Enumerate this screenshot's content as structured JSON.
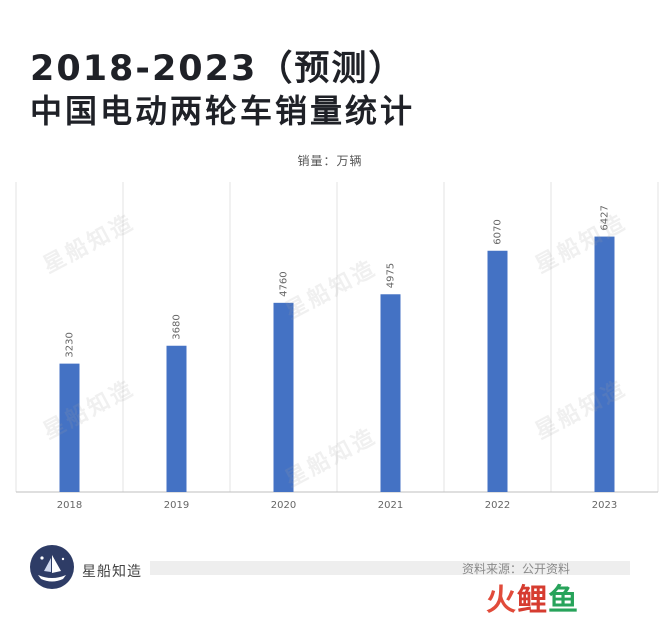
{
  "header": {
    "title_line1": "2018-2023（预测）",
    "title_line2": "中国电动两轮车销量统计"
  },
  "chart_data": {
    "type": "bar",
    "categories": [
      "2018",
      "2019",
      "2020",
      "2021",
      "2022",
      "2023"
    ],
    "values": [
      3230,
      3680,
      4760,
      4975,
      6070,
      6427
    ],
    "title": "",
    "unit_label": "销量：万辆",
    "xlabel": "",
    "ylabel": "",
    "ylim": [
      0,
      7800
    ],
    "grid": "vertical",
    "bar_color": "#4472c4"
  },
  "watermarks": [
    "星船知造",
    "星船知造",
    "星船知造",
    "星船知造",
    "星船知造",
    "星船知造"
  ],
  "footer": {
    "brand": "星船知造",
    "source": "资料来源：公开资料",
    "corner_logo": {
      "part1": "火",
      "part2": "鲤",
      "part3": "鱼"
    }
  }
}
